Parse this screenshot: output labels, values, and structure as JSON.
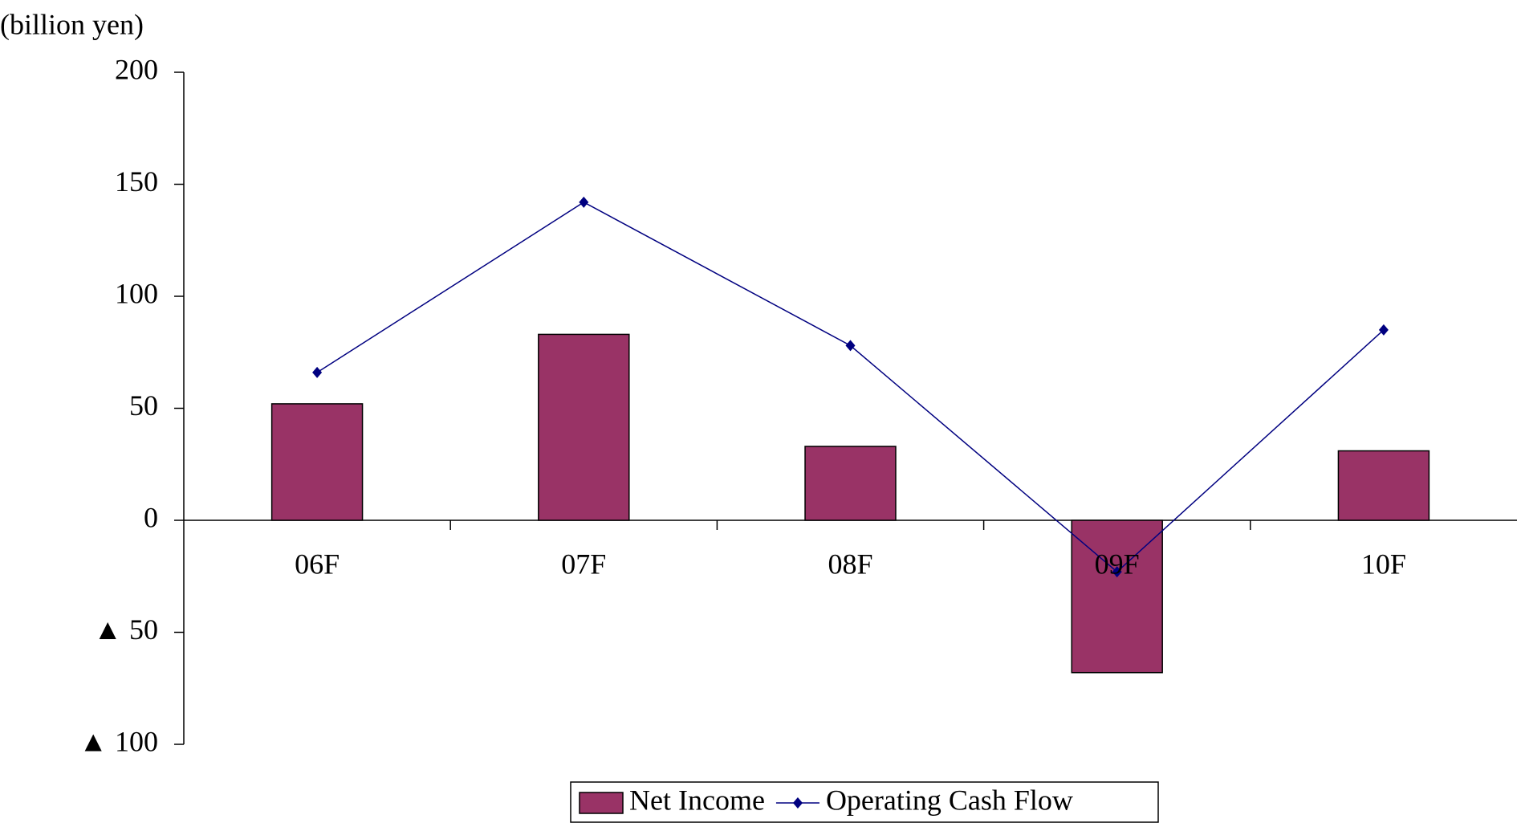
{
  "chart_data": {
    "type": "bar",
    "y_axis_label": "(billion yen)",
    "categories": [
      "06F",
      "07F",
      "08F",
      "09F",
      "10F"
    ],
    "series": [
      {
        "name": "Net Income",
        "type": "bar",
        "color": "#993366",
        "values": [
          52,
          83,
          33,
          -68,
          31
        ]
      },
      {
        "name": "Operating Cash Flow",
        "type": "line",
        "color": "#000080",
        "values": [
          66,
          142,
          78,
          -23,
          85
        ]
      }
    ],
    "ylim": [
      -100,
      200
    ],
    "yticks": [
      200,
      150,
      100,
      50,
      0,
      {
        "value": -50,
        "label": "▲ 50"
      },
      {
        "value": -100,
        "label": "▲ 100"
      }
    ],
    "legend": "bottom"
  }
}
